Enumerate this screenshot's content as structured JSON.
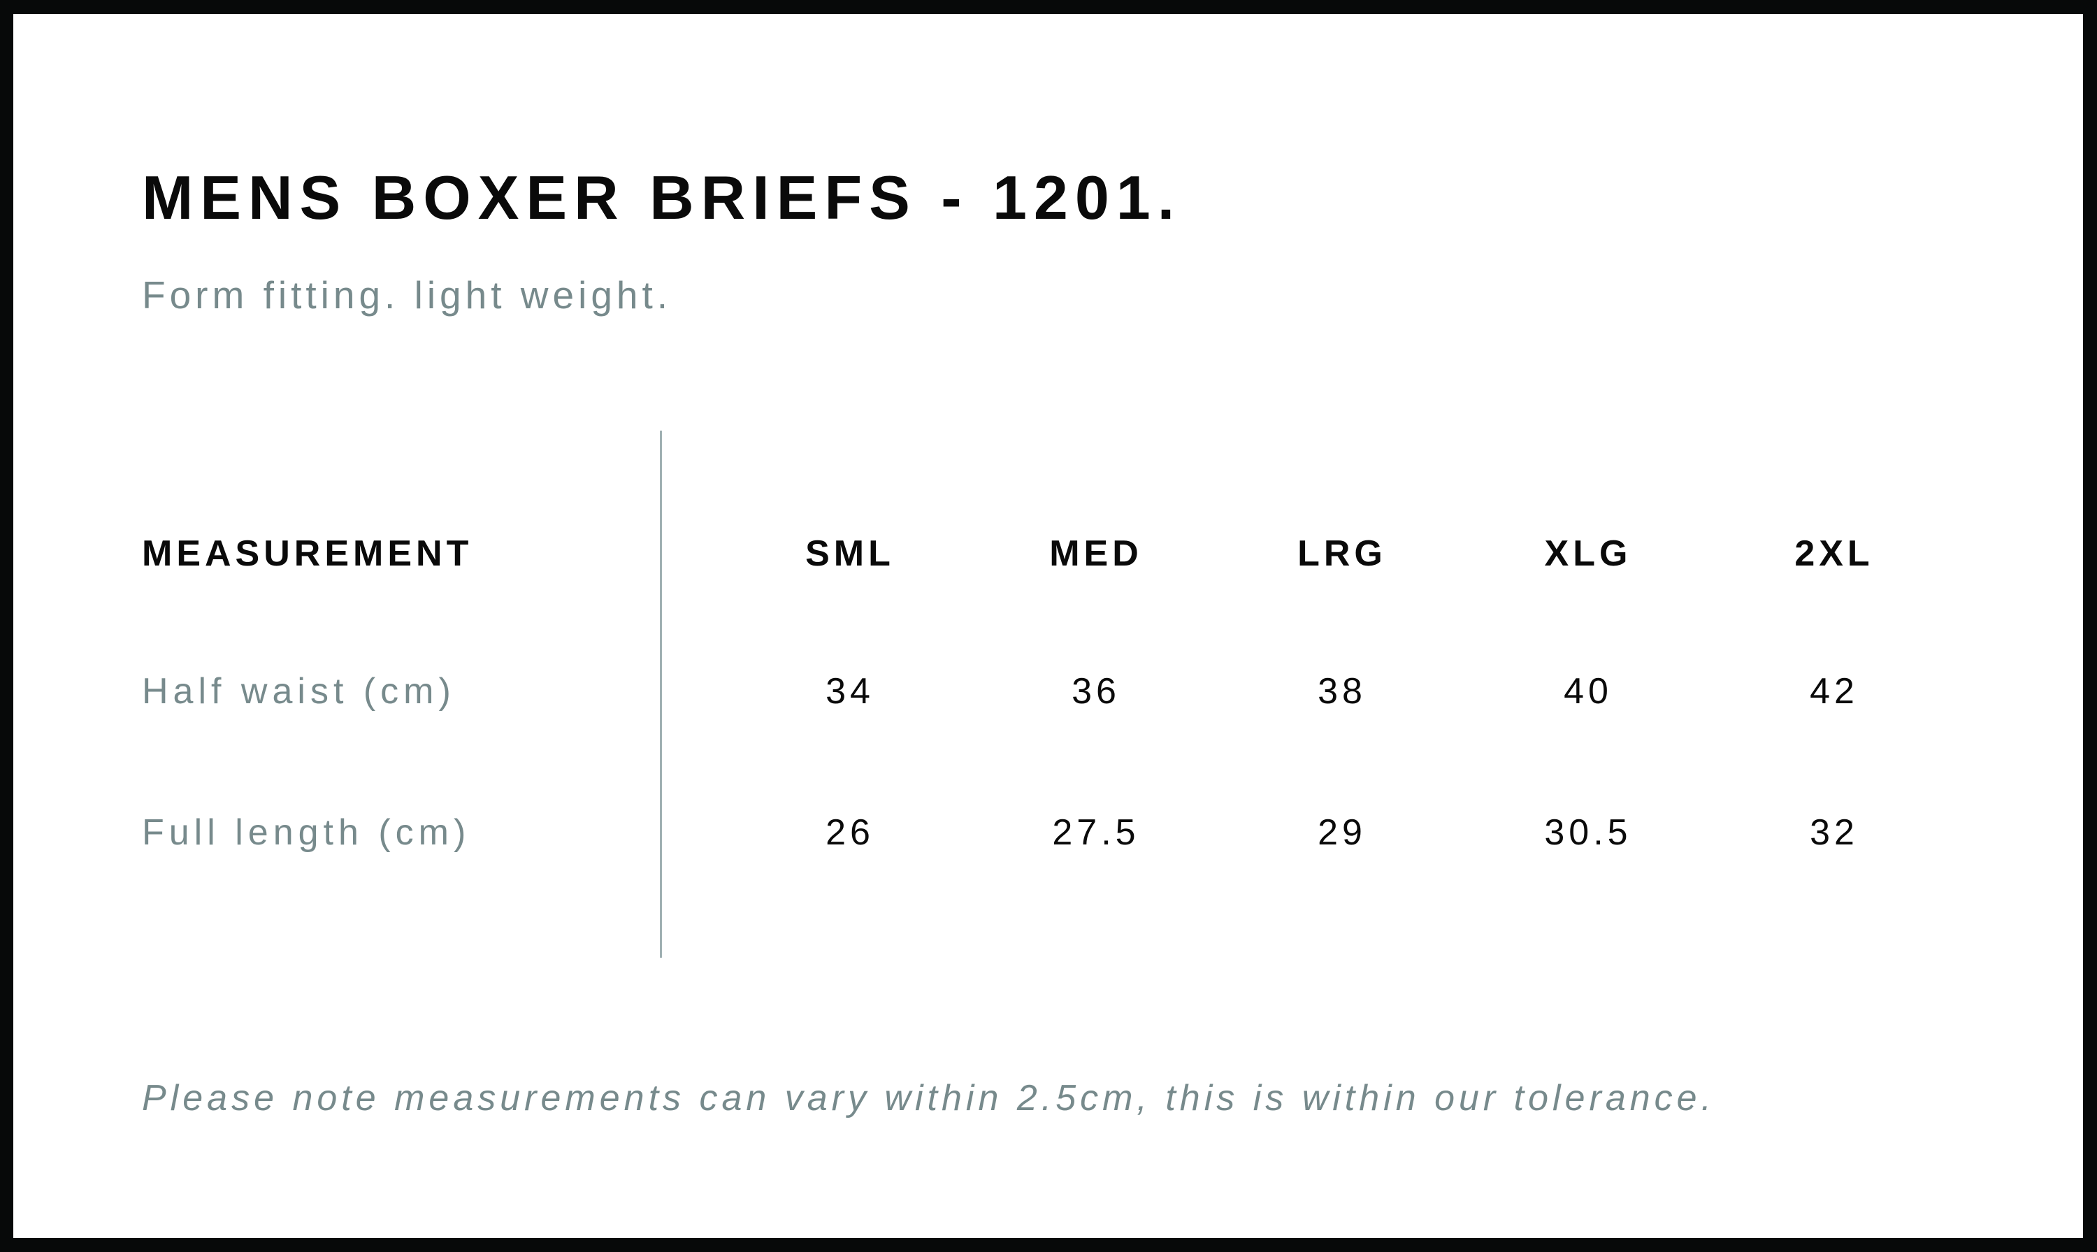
{
  "title": "MENS BOXER BRIEFS - 1201.",
  "subtitle": "Form fitting. light weight.",
  "table": {
    "header": [
      "MEASUREMENT",
      "SML",
      "MED",
      "LRG",
      "XLG",
      "2XL"
    ],
    "rows": [
      {
        "label": "Half waist (cm)",
        "values": [
          "34",
          "36",
          "38",
          "40",
          "42"
        ]
      },
      {
        "label": "Full length (cm)",
        "values": [
          "26",
          "27.5",
          "29",
          "30.5",
          "32"
        ]
      }
    ]
  },
  "note": "Please note measurements can vary within 2.5cm, this is within our tolerance.",
  "colors": {
    "frame": "#070909",
    "text_dark": "#0a0a0a",
    "text_grey": "#778a8c",
    "divider": "#9fb0b2"
  }
}
